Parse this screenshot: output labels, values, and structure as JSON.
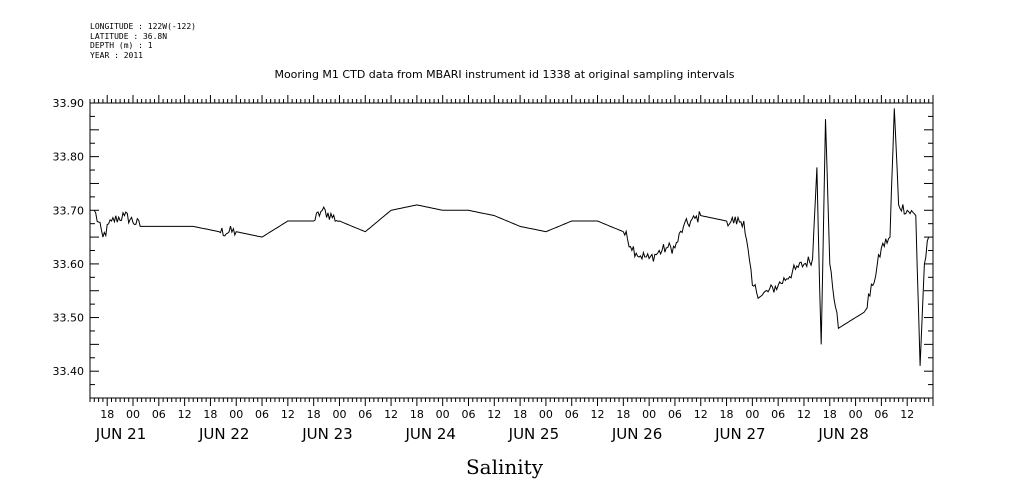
{
  "meta": {
    "longitude": "LONGITUDE : 122W(-122)",
    "latitude": "LATITUDE : 36.8N",
    "depth": "DEPTH (m) : 1",
    "year": "YEAR : 2011"
  },
  "chart_data": {
    "type": "line",
    "title": "Mooring M1 CTD data from MBARI instrument id 1338 at original sampling intervals",
    "xlabel": "Salinity",
    "ylabel": "",
    "ylim": [
      33.35,
      33.9
    ],
    "xlim_hours": "2011-06-20 14:00 to 2011-06-28 18:00",
    "yticks": [
      "33.90",
      "33.80",
      "33.70",
      "33.60",
      "33.50",
      "33.40"
    ],
    "xticks_hour": [
      "18",
      "00",
      "06",
      "12",
      "18",
      "00",
      "06",
      "12",
      "18",
      "00",
      "06",
      "12",
      "18",
      "00",
      "06",
      "12",
      "18",
      "00",
      "06",
      "12",
      "18",
      "00",
      "06",
      "12",
      "18",
      "00",
      "06",
      "12",
      "18",
      "00",
      "06",
      "12"
    ],
    "day_labels": [
      "JUN 21",
      "JUN 22",
      "JUN 23",
      "JUN 24",
      "JUN 25",
      "JUN 26",
      "JUN 27",
      "JUN 28"
    ],
    "series": [
      {
        "x": [
          "2011-06-20 15:00",
          "2011-06-20 17:00",
          "2011-06-20 19:00",
          "2011-06-20 22:00",
          "2011-06-21 02:00",
          "2011-06-21 08:00",
          "2011-06-21 14:00",
          "2011-06-21 20:00",
          "2011-06-22 00:00",
          "2011-06-22 06:00",
          "2011-06-22 12:00",
          "2011-06-22 18:00",
          "2011-06-22 20:00",
          "2011-06-23 00:00",
          "2011-06-23 06:00",
          "2011-06-23 12:00",
          "2011-06-23 18:00",
          "2011-06-24 00:00",
          "2011-06-24 06:00",
          "2011-06-24 12:00",
          "2011-06-24 18:00",
          "2011-06-25 00:00",
          "2011-06-25 06:00",
          "2011-06-25 12:00",
          "2011-06-25 18:00",
          "2011-06-25 21:00",
          "2011-06-26 00:00",
          "2011-06-26 04:00",
          "2011-06-26 06:00",
          "2011-06-26 08:00",
          "2011-06-26 12:00",
          "2011-06-26 18:00",
          "2011-06-26 22:00",
          "2011-06-27 00:00",
          "2011-06-27 02:00",
          "2011-06-27 06:00",
          "2011-06-27 10:00",
          "2011-06-27 14:00",
          "2011-06-27 15:00",
          "2011-06-27 16:00",
          "2011-06-27 17:00",
          "2011-06-27 18:00",
          "2011-06-27 20:00",
          "2011-06-28 02:00",
          "2011-06-28 04:00",
          "2011-06-28 06:00",
          "2011-06-28 08:00",
          "2011-06-28 09:00",
          "2011-06-28 10:00",
          "2011-06-28 14:00",
          "2011-06-28 15:00",
          "2011-06-28 16:00",
          "2011-06-28 17:00"
        ],
        "values": [
          33.7,
          33.65,
          33.68,
          33.69,
          33.67,
          33.67,
          33.67,
          33.66,
          33.66,
          33.65,
          33.68,
          33.68,
          33.7,
          33.68,
          33.66,
          33.7,
          33.71,
          33.7,
          33.7,
          33.69,
          33.67,
          33.66,
          33.68,
          33.68,
          33.66,
          33.62,
          33.61,
          33.63,
          33.63,
          33.67,
          33.69,
          33.68,
          33.68,
          33.56,
          33.54,
          33.56,
          33.59,
          33.61,
          33.78,
          33.45,
          33.87,
          33.6,
          33.48,
          33.51,
          33.56,
          33.63,
          33.65,
          33.89,
          33.71,
          33.69,
          33.41,
          33.6,
          33.65
        ]
      }
    ]
  }
}
